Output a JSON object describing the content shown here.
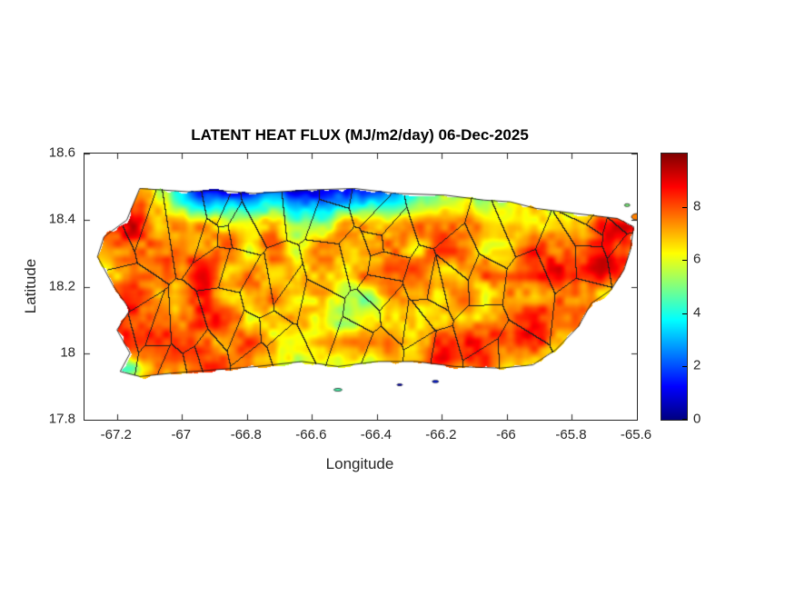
{
  "chart_data": {
    "type": "heatmap",
    "title": "LATENT HEAT FLUX (MJ/m2/day) 06-Dec-2025",
    "variable": "LATENT HEAT FLUX",
    "units": "MJ/m2/day",
    "date": "06-Dec-2025",
    "region": "Puerto Rico",
    "xlabel": "Longitude",
    "ylabel": "Latitude",
    "xlim": [
      -67.3,
      -65.6
    ],
    "ylim": [
      17.8,
      18.6
    ],
    "xticks": [
      -67.2,
      -67,
      -66.8,
      -66.6,
      -66.4,
      -66.2,
      -66,
      -65.8,
      -65.6
    ],
    "xtick_labels": [
      "-67.2",
      "-67",
      "-66.8",
      "-66.6",
      "-66.4",
      "-66.2",
      "-66",
      "-65.8",
      "-65.6"
    ],
    "yticks": [
      18.6,
      18.4,
      18.2,
      18,
      17.8
    ],
    "ytick_labels": [
      "18.6",
      "18.4",
      "18.2",
      "18",
      "17.8"
    ],
    "colormap": "jet",
    "colorbar": {
      "range": [
        0,
        10
      ],
      "ticks": [
        0,
        2,
        4,
        6,
        8
      ],
      "tick_labels": [
        "0",
        "2",
        "4",
        "6",
        "8"
      ]
    },
    "grid": {
      "lon": [
        -67.25,
        -67.175,
        -67.1,
        -67.025,
        -66.95,
        -66.875,
        -66.8,
        -66.725,
        -66.65,
        -66.575,
        -66.5,
        -66.425,
        -66.35,
        -66.275,
        -66.2,
        -66.125,
        -66.05,
        -65.975,
        -65.9,
        -65.825,
        -65.75,
        -65.675,
        -65.6
      ],
      "lat": [
        18.5,
        18.445,
        18.39,
        18.335,
        18.28,
        18.225,
        18.17,
        18.115,
        18.06,
        18.005,
        17.95
      ],
      "values": [
        [
          7,
          6.5,
          6,
          4,
          1.5,
          0.5,
          0.5,
          1,
          0.5,
          1,
          1.5,
          1,
          2,
          3,
          4.5,
          5,
          4.5,
          5,
          5,
          5.5,
          5,
          5,
          5
        ],
        [
          8,
          8,
          7.5,
          6,
          4,
          3,
          3,
          3.5,
          3,
          3.5,
          4,
          4,
          4.5,
          5,
          5.5,
          6,
          5.5,
          6,
          6,
          5.5,
          6,
          5.5,
          6
        ],
        [
          8.5,
          8.5,
          8,
          7.5,
          6.5,
          6,
          6,
          6.5,
          6,
          6,
          6.5,
          6,
          6.5,
          6.5,
          7,
          7,
          6.5,
          7,
          6.5,
          7,
          7.5,
          8,
          8
        ],
        [
          8,
          8.5,
          8.5,
          8,
          7.5,
          7,
          7.5,
          7,
          7,
          7.5,
          7,
          7,
          7.5,
          7,
          7.5,
          7,
          7,
          7.5,
          7,
          8,
          8.5,
          9,
          8.5
        ],
        [
          7.5,
          8.5,
          8.5,
          8.5,
          8,
          7.5,
          7,
          7.5,
          7,
          7.5,
          7.5,
          7,
          7,
          7.5,
          7,
          7.5,
          7,
          7.5,
          8,
          8.5,
          9,
          9,
          8.5
        ],
        [
          7,
          8,
          8.5,
          8,
          8,
          7.5,
          7.5,
          7,
          7.5,
          7,
          7,
          7.5,
          7,
          7,
          7.5,
          7,
          7.5,
          8,
          8.5,
          8.5,
          8.5,
          8,
          8
        ],
        [
          7.5,
          8,
          8,
          7.5,
          7.5,
          7,
          6.5,
          7,
          6.5,
          6,
          6.5,
          6,
          6.5,
          7,
          6.5,
          7,
          7.5,
          8,
          8,
          8.5,
          8,
          7.5,
          7
        ],
        [
          7,
          8.5,
          8.5,
          8,
          7.5,
          7.5,
          7,
          6.5,
          6,
          6.5,
          6,
          5.5,
          6,
          6.5,
          7,
          7.5,
          8,
          8.5,
          8.5,
          8,
          7.5,
          7,
          6.5
        ],
        [
          6.5,
          8,
          8.5,
          8.5,
          8,
          7.5,
          7,
          6.5,
          6.5,
          6,
          6.5,
          6,
          6.5,
          7,
          7.5,
          8,
          8.5,
          8.5,
          8,
          7.5,
          7,
          6.5,
          6
        ],
        [
          3,
          7.5,
          8,
          8,
          8.5,
          8,
          7.5,
          7,
          6.5,
          6.5,
          6,
          6.5,
          7,
          7.5,
          8,
          8.5,
          8,
          7.5,
          7,
          6.5,
          6,
          5.5,
          5
        ],
        [
          0.5,
          5,
          7,
          7.5,
          8,
          8.5,
          8,
          7.5,
          7,
          6.5,
          6,
          6.5,
          7,
          7.5,
          8,
          7.5,
          7,
          6.5,
          6,
          6,
          5.5,
          5,
          5
        ]
      ]
    },
    "coastline": [
      [
        -67.13,
        18.495
      ],
      [
        -66.98,
        18.485
      ],
      [
        -66.9,
        18.49
      ],
      [
        -66.78,
        18.48
      ],
      [
        -66.62,
        18.49
      ],
      [
        -66.47,
        18.495
      ],
      [
        -66.34,
        18.48
      ],
      [
        -66.19,
        18.475
      ],
      [
        -66.07,
        18.46
      ],
      [
        -65.99,
        18.455
      ],
      [
        -65.91,
        18.435
      ],
      [
        -65.79,
        18.42
      ],
      [
        -65.66,
        18.405
      ],
      [
        -65.61,
        18.38
      ],
      [
        -65.62,
        18.31
      ],
      [
        -65.64,
        18.25
      ],
      [
        -65.68,
        18.19
      ],
      [
        -65.74,
        18.15
      ],
      [
        -65.78,
        18.08
      ],
      [
        -65.85,
        18.01
      ],
      [
        -65.92,
        17.965
      ],
      [
        -66.02,
        17.955
      ],
      [
        -66.16,
        17.96
      ],
      [
        -66.28,
        17.975
      ],
      [
        -66.4,
        17.975
      ],
      [
        -66.52,
        17.96
      ],
      [
        -66.63,
        17.975
      ],
      [
        -66.77,
        17.96
      ],
      [
        -66.9,
        17.95
      ],
      [
        -67.03,
        17.94
      ],
      [
        -67.13,
        17.93
      ],
      [
        -67.19,
        17.945
      ],
      [
        -67.16,
        18.0
      ],
      [
        -67.2,
        18.07
      ],
      [
        -67.16,
        18.13
      ],
      [
        -67.21,
        18.2
      ],
      [
        -67.26,
        18.29
      ],
      [
        -67.24,
        18.35
      ],
      [
        -67.17,
        18.4
      ]
    ],
    "islets": [
      {
        "lon": -66.52,
        "lat": 17.89,
        "w": 9,
        "h": 3,
        "v": 4.5
      },
      {
        "lon": -66.33,
        "lat": 17.905,
        "w": 6,
        "h": 2,
        "v": 1.0
      },
      {
        "lon": -66.22,
        "lat": 17.915,
        "w": 7,
        "h": 2.5,
        "v": 1.5
      },
      {
        "lon": -65.6,
        "lat": 18.41,
        "w": 12,
        "h": 7,
        "v": 7.5
      },
      {
        "lon": -65.63,
        "lat": 18.445,
        "w": 6,
        "h": 3,
        "v": 5.0
      }
    ],
    "features": {
      "municipal_boundaries": true,
      "north_coast_low_flux_band": "values 0-3 along lat 18.45-18.5 between lon -67.0 and -66.25",
      "dominant_interior_flux": "7-9 MJ/m2/day (orange-red)"
    }
  },
  "colors": {
    "axis_text": "#262626",
    "title_text": "#000000",
    "plot_border": "#262626",
    "background": "#ffffff"
  }
}
